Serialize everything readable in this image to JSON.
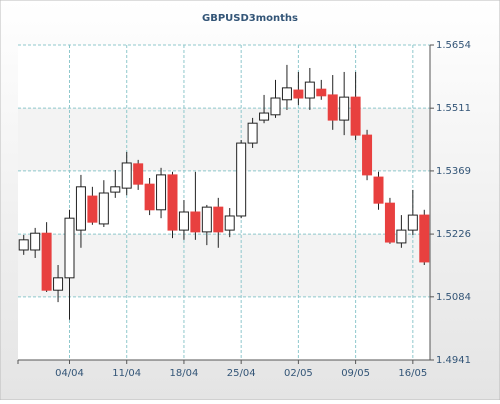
{
  "chart_data": {
    "type": "candlestick",
    "title": "GBPUSD3months",
    "categories": [
      null,
      null,
      null,
      null,
      "04/04",
      null,
      null,
      null,
      null,
      "11/04",
      null,
      null,
      null,
      null,
      "18/04",
      null,
      null,
      null,
      null,
      "25/04",
      null,
      null,
      null,
      null,
      "02/05",
      null,
      null,
      null,
      null,
      "09/05",
      null,
      null,
      null,
      null,
      "16/05",
      null
    ],
    "open": [
      1.519,
      1.519,
      1.5228,
      1.5099,
      1.5127,
      1.5235,
      1.5312,
      1.5249,
      1.5321,
      1.533,
      1.5385,
      1.5339,
      1.5281,
      1.536,
      1.5235,
      1.5276,
      1.5231,
      1.5287,
      1.5235,
      1.5267,
      1.5432,
      1.5484,
      1.5496,
      1.553,
      1.5552,
      1.5534,
      1.5554,
      1.5541,
      1.5484,
      1.5536,
      1.545,
      1.5355,
      1.5296,
      1.5206,
      1.5235,
      1.5269
    ],
    "high": [
      1.5224,
      1.524,
      1.5253,
      1.5156,
      1.5281,
      1.536,
      1.5333,
      1.5348,
      1.5371,
      1.5412,
      1.5394,
      1.5353,
      1.5376,
      1.5367,
      1.5303,
      1.5367,
      1.5292,
      1.5308,
      1.5285,
      1.5439,
      1.5489,
      1.5541,
      1.5575,
      1.5609,
      1.5593,
      1.5602,
      1.5575,
      1.5586,
      1.5593,
      1.5593,
      1.5462,
      1.5367,
      1.5308,
      1.5269,
      1.5326,
      1.5281
    ],
    "low": [
      1.5179,
      1.5172,
      1.5095,
      1.5072,
      1.5032,
      1.5195,
      1.5247,
      1.5242,
      1.5308,
      1.5314,
      1.5326,
      1.5269,
      1.5262,
      1.5217,
      1.5213,
      1.5213,
      1.5201,
      1.5195,
      1.5219,
      1.5262,
      1.5421,
      1.5477,
      1.5489,
      1.5507,
      1.5518,
      1.5507,
      1.553,
      1.5462,
      1.545,
      1.5439,
      1.5348,
      1.5281,
      1.5204,
      1.5195,
      1.5224,
      1.5156
    ],
    "close": [
      1.5213,
      1.5228,
      1.5099,
      1.5127,
      1.5262,
      1.5333,
      1.5253,
      1.5319,
      1.5333,
      1.5387,
      1.5339,
      1.5281,
      1.536,
      1.5235,
      1.5276,
      1.5231,
      1.5287,
      1.5231,
      1.5267,
      1.5432,
      1.5477,
      1.55,
      1.5534,
      1.5557,
      1.5534,
      1.557,
      1.5539,
      1.5484,
      1.5536,
      1.545,
      1.536,
      1.5296,
      1.5208,
      1.5235,
      1.5269,
      1.5163
    ],
    "up_color": "#ffffff",
    "down_color": "#e8403f",
    "ylim": [
      1.4941,
      1.5654
    ],
    "yticks": [
      1.4941,
      1.5084,
      1.5226,
      1.5369,
      1.5511,
      1.5654
    ],
    "grid": true
  }
}
